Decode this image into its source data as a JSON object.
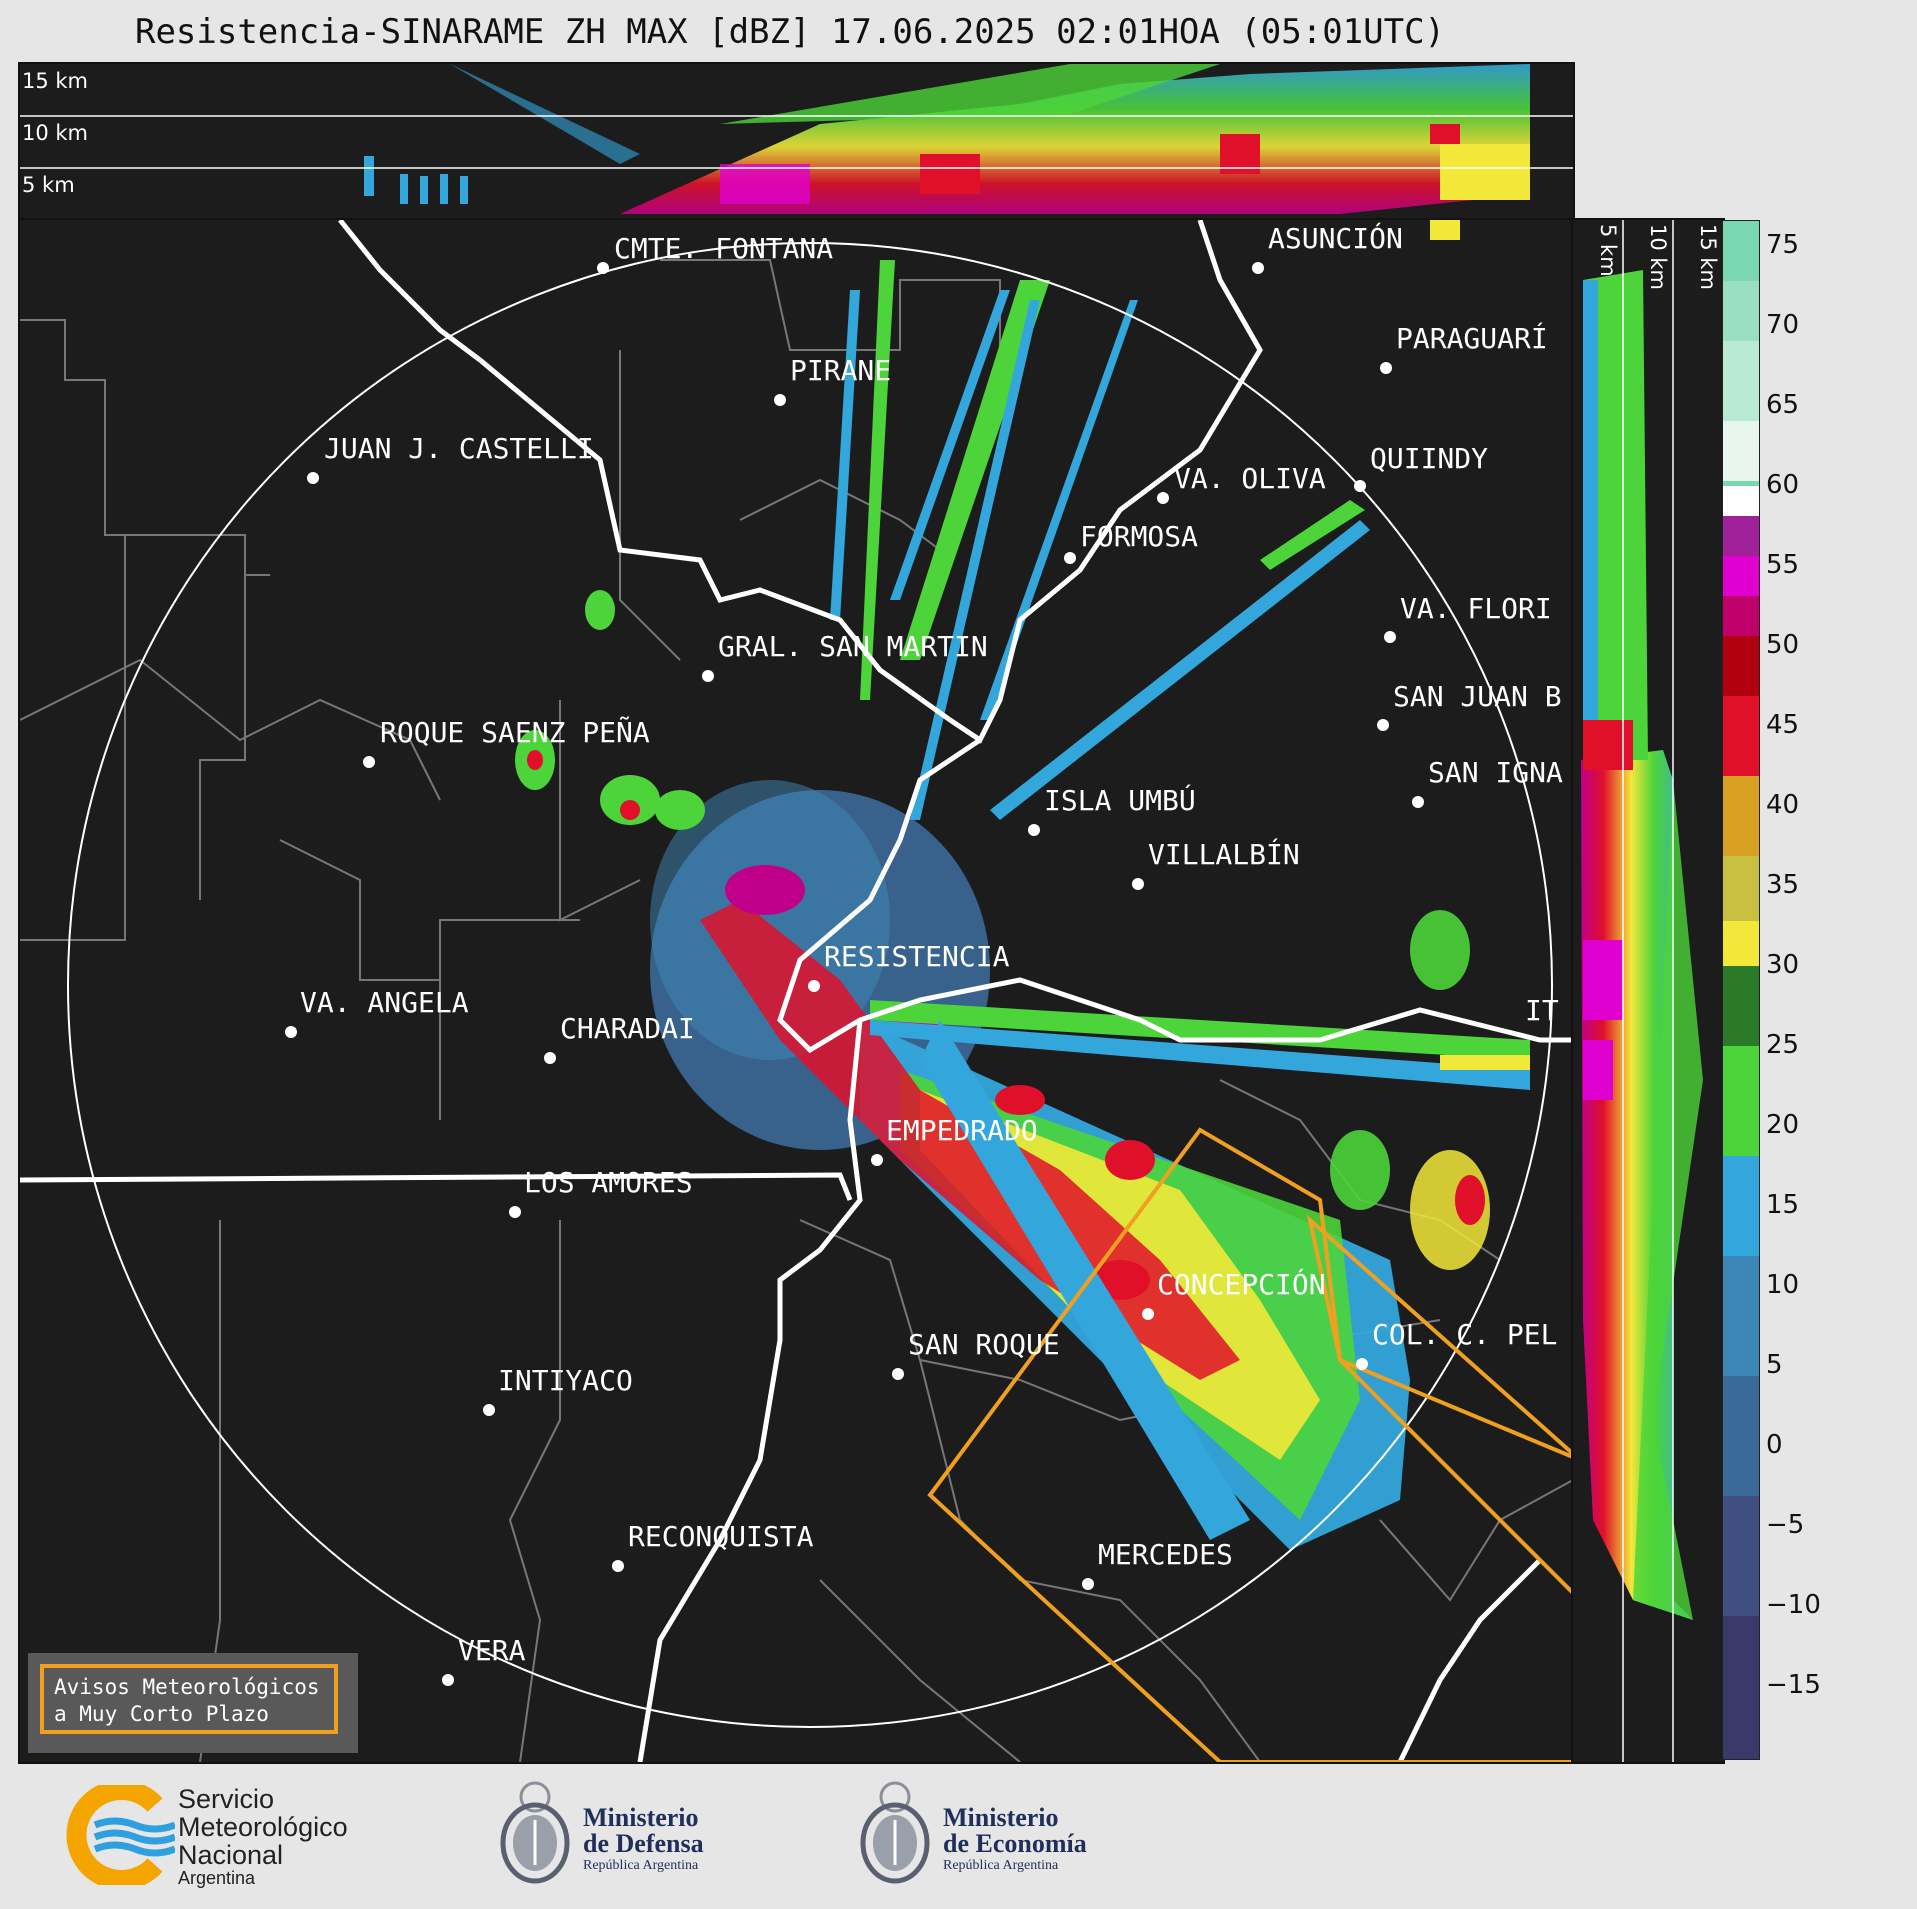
{
  "title": "Resistencia-SINARAME ZH MAX [dBZ] 17.06.2025 02:01HOA (05:01UTC)",
  "top_panel": {
    "altitude_labels": [
      "15 km",
      "10 km",
      "5 km"
    ]
  },
  "side_panel": {
    "altitude_labels": [
      "5 km",
      "10 km",
      "15 km"
    ]
  },
  "colorbar": {
    "unit": "dBZ",
    "ticks": [
      "75",
      "70",
      "65",
      "60",
      "55",
      "50",
      "45",
      "40",
      "35",
      "30",
      "25",
      "20",
      "15",
      "10",
      "5",
      "0",
      "−5",
      "−10",
      "−15"
    ],
    "range": [
      -20,
      77
    ]
  },
  "cities": [
    {
      "name": "CMTE. FONTANA"
    },
    {
      "name": "ASUNCIÓN"
    },
    {
      "name": "PIRANE"
    },
    {
      "name": "PARAGUARÍ"
    },
    {
      "name": "JUAN J. CASTELLI"
    },
    {
      "name": "VA. OLIVA"
    },
    {
      "name": "QUIINDY"
    },
    {
      "name": "FORMOSA"
    },
    {
      "name": "VA. FLORI"
    },
    {
      "name": "GRAL. SAN MARTIN"
    },
    {
      "name": "SAN JUAN B"
    },
    {
      "name": "ROQUE SAENZ PEÑA"
    },
    {
      "name": "SAN IGNA"
    },
    {
      "name": "ISLA UMBÚ"
    },
    {
      "name": "VILLALBÍN"
    },
    {
      "name": "RESISTENCIA"
    },
    {
      "name": "IT"
    },
    {
      "name": "VA. ANGELA"
    },
    {
      "name": "CHARADAI"
    },
    {
      "name": "EMPEDRADO"
    },
    {
      "name": "LOS AMORES"
    },
    {
      "name": "CONCEPCIÓN"
    },
    {
      "name": "SAN ROQUE"
    },
    {
      "name": "COL. C. PEL"
    },
    {
      "name": "INTIYACO"
    },
    {
      "name": "RECONQUISTA"
    },
    {
      "name": "MERCEDES"
    },
    {
      "name": "VERA"
    }
  ],
  "warning_box": {
    "line1": "Avisos Meteorológicos",
    "line2": "a Muy Corto Plazo"
  },
  "logos": {
    "smn": {
      "line1": "Servicio",
      "line2": "Meteorológico",
      "line3": "Nacional",
      "line4": "Argentina"
    },
    "defensa": {
      "line1": "Ministerio",
      "line2": "de Defensa",
      "line3": "República Argentina"
    },
    "economia": {
      "line1": "Ministerio",
      "line2": "de Economía",
      "line3": "República Argentina"
    }
  },
  "colors": {
    "background": "#1c1c1c",
    "warning_outline": "#f0a020",
    "dbz_scale": [
      "#3a3a6a",
      "#3f4f7f",
      "#3c6a98",
      "#3d87b8",
      "#33a7dc",
      "#4cd43a",
      "#2a8a2a",
      "#f2e83a",
      "#d8a020",
      "#e0102a",
      "#b00010",
      "#e000d0",
      "#ffffff",
      "#7ad8b0"
    ]
  }
}
